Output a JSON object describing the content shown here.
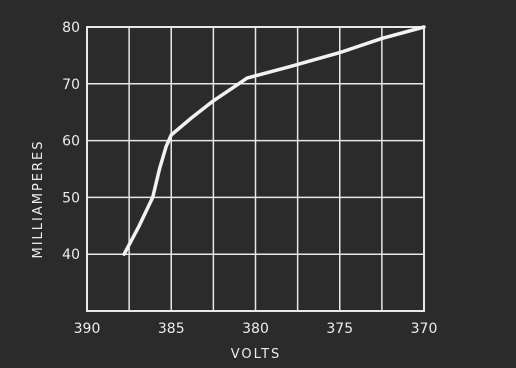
{
  "chart_data": {
    "type": "line",
    "title": "",
    "xlabel": "VOLTS",
    "ylabel": "MILLIAMPERES",
    "x_reversed": true,
    "xlim": [
      390,
      370
    ],
    "ylim": [
      30,
      80
    ],
    "x_ticks": [
      390,
      385,
      380,
      375,
      370
    ],
    "x_tick_labels": [
      "390",
      "385",
      "380",
      "375",
      "370"
    ],
    "y_ticks": [
      40,
      50,
      60,
      70,
      80
    ],
    "y_tick_labels": [
      "40",
      "50",
      "60",
      "70",
      "80"
    ],
    "grid": true,
    "series": [
      {
        "x": [
          387.8,
          386.9,
          386.1,
          385.7,
          385.3,
          385.0,
          383.8,
          382.5,
          381.0,
          380.5,
          378.0,
          375.0,
          372.5,
          370.0
        ],
        "y": [
          40,
          45,
          50,
          55,
          59,
          61,
          64,
          67,
          70,
          71,
          73,
          75.5,
          78,
          80
        ]
      }
    ],
    "colors": {
      "background": "#2b2b2b",
      "grid": "#e8e8e8",
      "line": "#f2f2f2",
      "text": "#ececec"
    }
  }
}
